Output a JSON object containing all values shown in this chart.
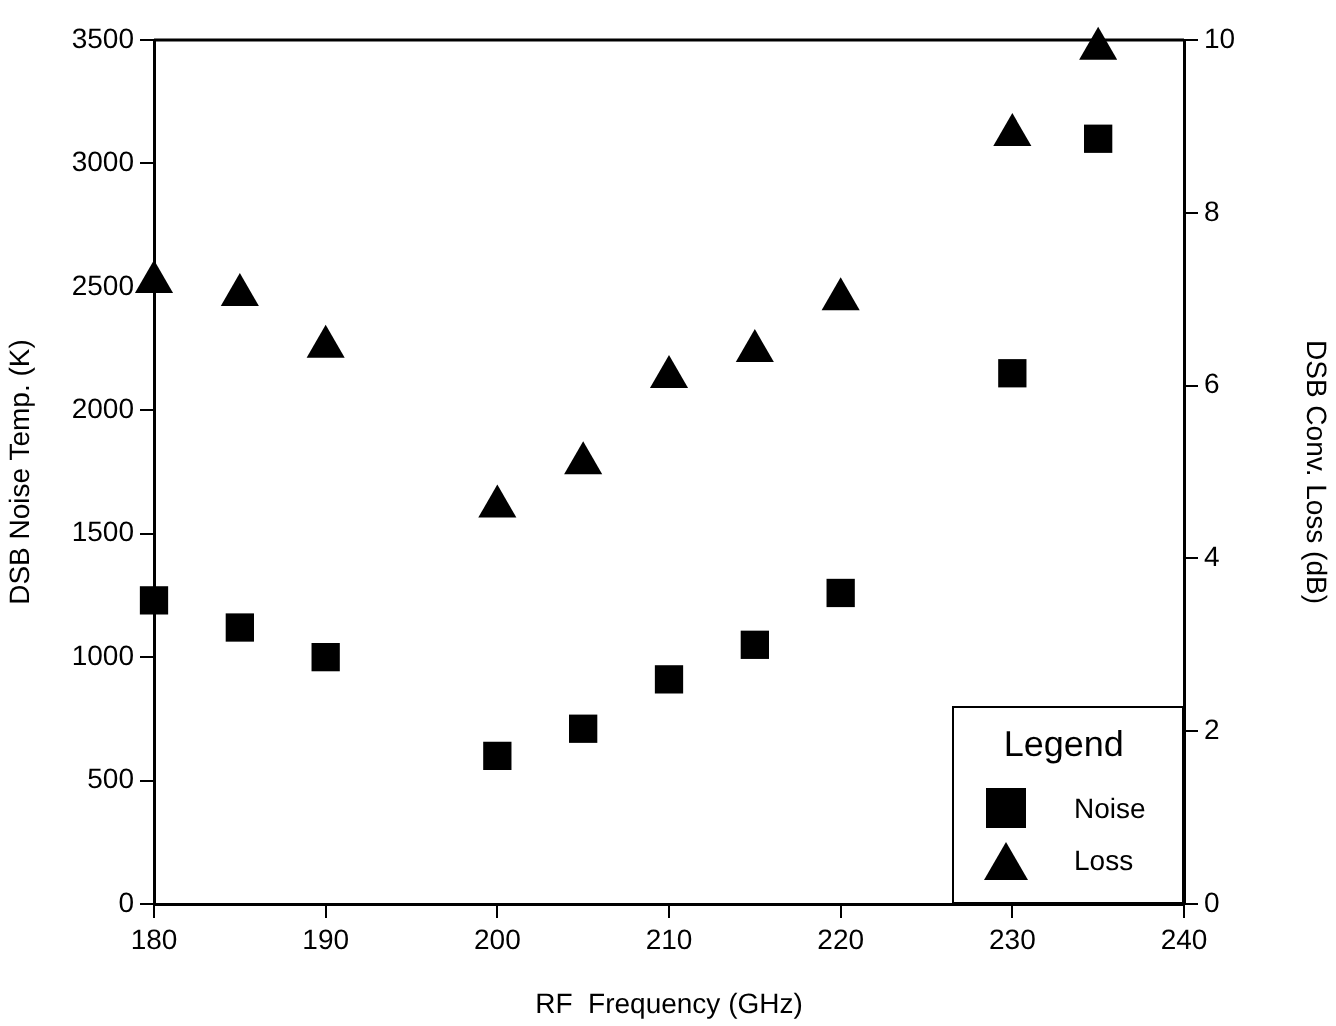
{
  "chart_data": {
    "type": "scatter",
    "xlabel": "RF  Frequency (GHz)",
    "ylabel": "DSB Noise Temp. (K)",
    "y2label": "DSB Conv. Loss (dB)",
    "legend_title": "Legend",
    "legend": "bottom right",
    "grid": false,
    "x": [
      180,
      185,
      190,
      200,
      205,
      210,
      215,
      220,
      230,
      235
    ],
    "xlim": [
      180,
      240
    ],
    "xticks": [
      180,
      190,
      200,
      210,
      220,
      230,
      240
    ],
    "ylim": [
      0,
      3500
    ],
    "yticks": [
      0,
      500,
      1000,
      1500,
      2000,
      2500,
      3000,
      3500
    ],
    "y2lim": [
      0,
      10
    ],
    "y2ticks": [
      0,
      2,
      4,
      6,
      8,
      10
    ],
    "series": [
      {
        "name": "Noise",
        "color": "#000000",
        "marker": "square",
        "values": [
          1230,
          1120,
          1000,
          600,
          710,
          910,
          1050,
          1260,
          2150,
          3100
        ]
      },
      {
        "name": "Loss",
        "color": "#000000",
        "marker": "triangle",
        "axis": "y2",
        "values": [
          7.2,
          7.05,
          6.45,
          4.6,
          5.1,
          6.1,
          6.4,
          7.0,
          8.9,
          9.9
        ]
      }
    ]
  }
}
